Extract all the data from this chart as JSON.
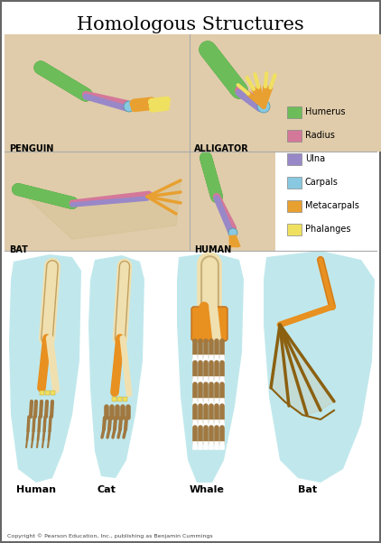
{
  "title": "Homologous Structures",
  "title_fontsize": 15,
  "background_color": "#ffffff",
  "border_color": "#666666",
  "legend_items": [
    {
      "label": "Humerus",
      "color": "#6cbd5a"
    },
    {
      "label": "Radius",
      "color": "#d4789a"
    },
    {
      "label": "Ulna",
      "color": "#9988c8"
    },
    {
      "label": "Carpals",
      "color": "#88c8e0"
    },
    {
      "label": "Metacarpals",
      "color": "#e8a030"
    },
    {
      "label": "Phalanges",
      "color": "#f0e060"
    }
  ],
  "top_labels": [
    "PENGUIN",
    "ALLIGATOR"
  ],
  "mid_labels": [
    "BAT",
    "HUMAN"
  ],
  "bottom_labels": [
    "Human",
    "Cat",
    "Whale",
    "Bat"
  ],
  "copyright": "Copyright © Pearson Education, Inc., publishing as Benjamin Cummings",
  "teal_bg": "#c0e8ec",
  "skin_bg": "#e0ccaa",
  "skin_dark": "#c8b090",
  "bone_white": "#f0e0b0",
  "bone_orange": "#e89020",
  "bone_brown": "#a07840"
}
